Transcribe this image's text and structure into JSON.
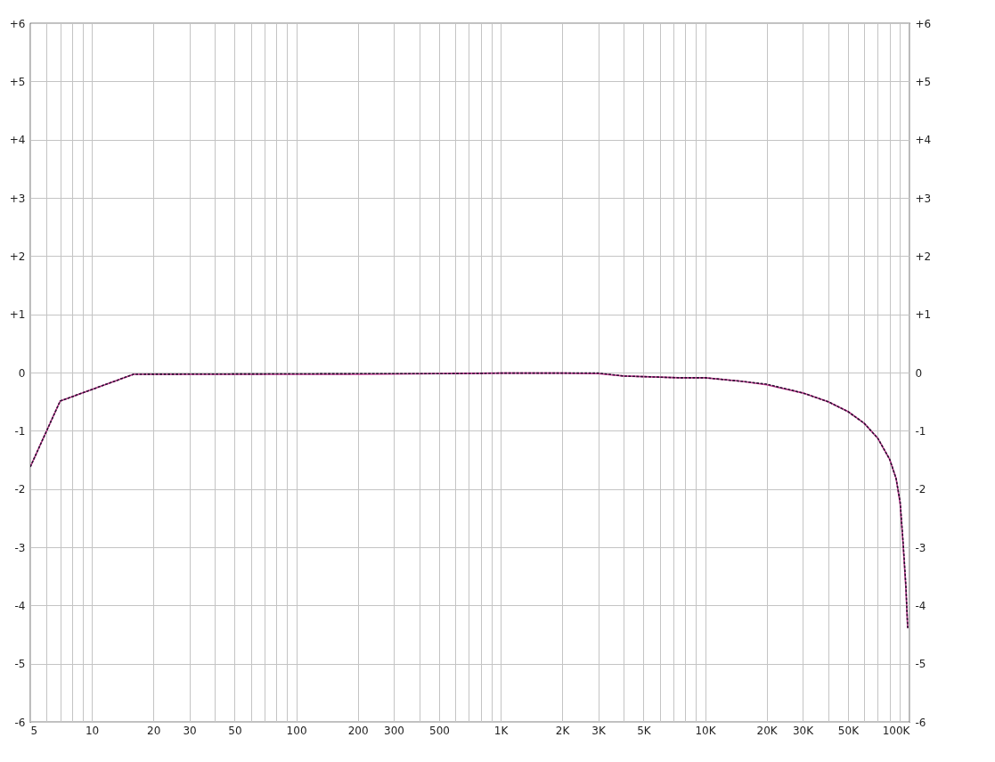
{
  "chart_data": {
    "type": "line",
    "log": "x",
    "x": [
      5,
      7,
      16,
      200,
      500,
      1000,
      2000,
      3000,
      4000,
      7500,
      10000,
      15000,
      20000,
      30000,
      40000,
      50000,
      60000,
      70000,
      80000,
      86000,
      90000,
      93000,
      96000,
      98000
    ],
    "series": [
      {
        "color": "#d0409a",
        "line_style": "solid",
        "values": [
          -1.62,
          -0.49,
          -0.03,
          -0.03,
          -0.02,
          -0.01,
          -0.01,
          -0.02,
          -0.06,
          -0.09,
          -0.09,
          -0.15,
          -0.21,
          -0.35,
          -0.5,
          -0.67,
          -0.87,
          -1.13,
          -1.49,
          -1.82,
          -2.25,
          -2.94,
          -3.7,
          -4.39
        ]
      },
      {
        "color": "#2a1030",
        "line_style": "dashed",
        "values": [
          -1.62,
          -0.49,
          -0.03,
          -0.02,
          -0.02,
          -0.01,
          -0.01,
          -0.01,
          -0.06,
          -0.09,
          -0.09,
          -0.15,
          -0.2,
          -0.35,
          -0.5,
          -0.67,
          -0.87,
          -1.13,
          -1.49,
          -1.82,
          -2.22,
          -2.9,
          -3.65,
          -4.39
        ]
      }
    ],
    "xlim": [
      5,
      100000
    ],
    "xticks": [
      5,
      {
        "value": 6,
        "label": null
      },
      {
        "value": 7,
        "label": null
      },
      {
        "value": 8,
        "label": null
      },
      {
        "value": 9,
        "label": null
      },
      10,
      20,
      30,
      {
        "value": 40,
        "label": null
      },
      50,
      {
        "value": 60,
        "label": null
      },
      {
        "value": 70,
        "label": null
      },
      {
        "value": 80,
        "label": null
      },
      {
        "value": 90,
        "label": null
      },
      100,
      200,
      300,
      {
        "value": 400,
        "label": null
      },
      500,
      {
        "value": 600,
        "label": null
      },
      {
        "value": 700,
        "label": null
      },
      {
        "value": 800,
        "label": null
      },
      {
        "value": 900,
        "label": null
      },
      {
        "value": 1000,
        "label": "1K"
      },
      {
        "value": 2000,
        "label": "2K"
      },
      {
        "value": 3000,
        "label": "3K"
      },
      {
        "value": 4000,
        "label": null
      },
      {
        "value": 5000,
        "label": "5K"
      },
      {
        "value": 6000,
        "label": null
      },
      {
        "value": 7000,
        "label": null
      },
      {
        "value": 8000,
        "label": null
      },
      {
        "value": 9000,
        "label": null
      },
      {
        "value": 10000,
        "label": "10K"
      },
      {
        "value": 20000,
        "label": "20K"
      },
      {
        "value": 30000,
        "label": "30K"
      },
      {
        "value": 40000,
        "label": null
      },
      {
        "value": 50000,
        "label": "50K"
      },
      {
        "value": 60000,
        "label": null
      },
      {
        "value": 70000,
        "label": null
      },
      {
        "value": 80000,
        "label": null
      },
      {
        "value": 90000,
        "label": null
      },
      {
        "value": 100000,
        "label": "100K"
      }
    ],
    "ylim": [
      -6,
      6
    ],
    "yticks": [
      {
        "value": 6,
        "label": "+6"
      },
      {
        "value": 5,
        "label": "+5"
      },
      {
        "value": 4,
        "label": "+4"
      },
      {
        "value": 3,
        "label": "+3"
      },
      {
        "value": 2,
        "label": "+2"
      },
      {
        "value": 1,
        "label": "+1"
      },
      {
        "value": 0,
        "label": "0"
      },
      {
        "value": -1,
        "label": "-1"
      },
      {
        "value": -2,
        "label": "-2"
      },
      {
        "value": -3,
        "label": "-3"
      },
      {
        "value": -4,
        "label": "-4"
      },
      {
        "value": -5,
        "label": "-5"
      },
      {
        "value": -6,
        "label": "-6"
      }
    ],
    "y2lim": [
      -6,
      6
    ],
    "y2ticks": [
      {
        "value": 6,
        "label": "+6"
      },
      {
        "value": 5,
        "label": "+5"
      },
      {
        "value": 4,
        "label": "+4"
      },
      {
        "value": 3,
        "label": "+3"
      },
      {
        "value": 2,
        "label": "+2"
      },
      {
        "value": 1,
        "label": "+1"
      },
      {
        "value": 0,
        "label": "0"
      },
      {
        "value": -1,
        "label": "-1"
      },
      {
        "value": -2,
        "label": "-2"
      },
      {
        "value": -3,
        "label": "-3"
      },
      {
        "value": -4,
        "label": "-4"
      },
      {
        "value": -5,
        "label": "-5"
      },
      {
        "value": -6,
        "label": "-6"
      }
    ],
    "grid": true
  }
}
